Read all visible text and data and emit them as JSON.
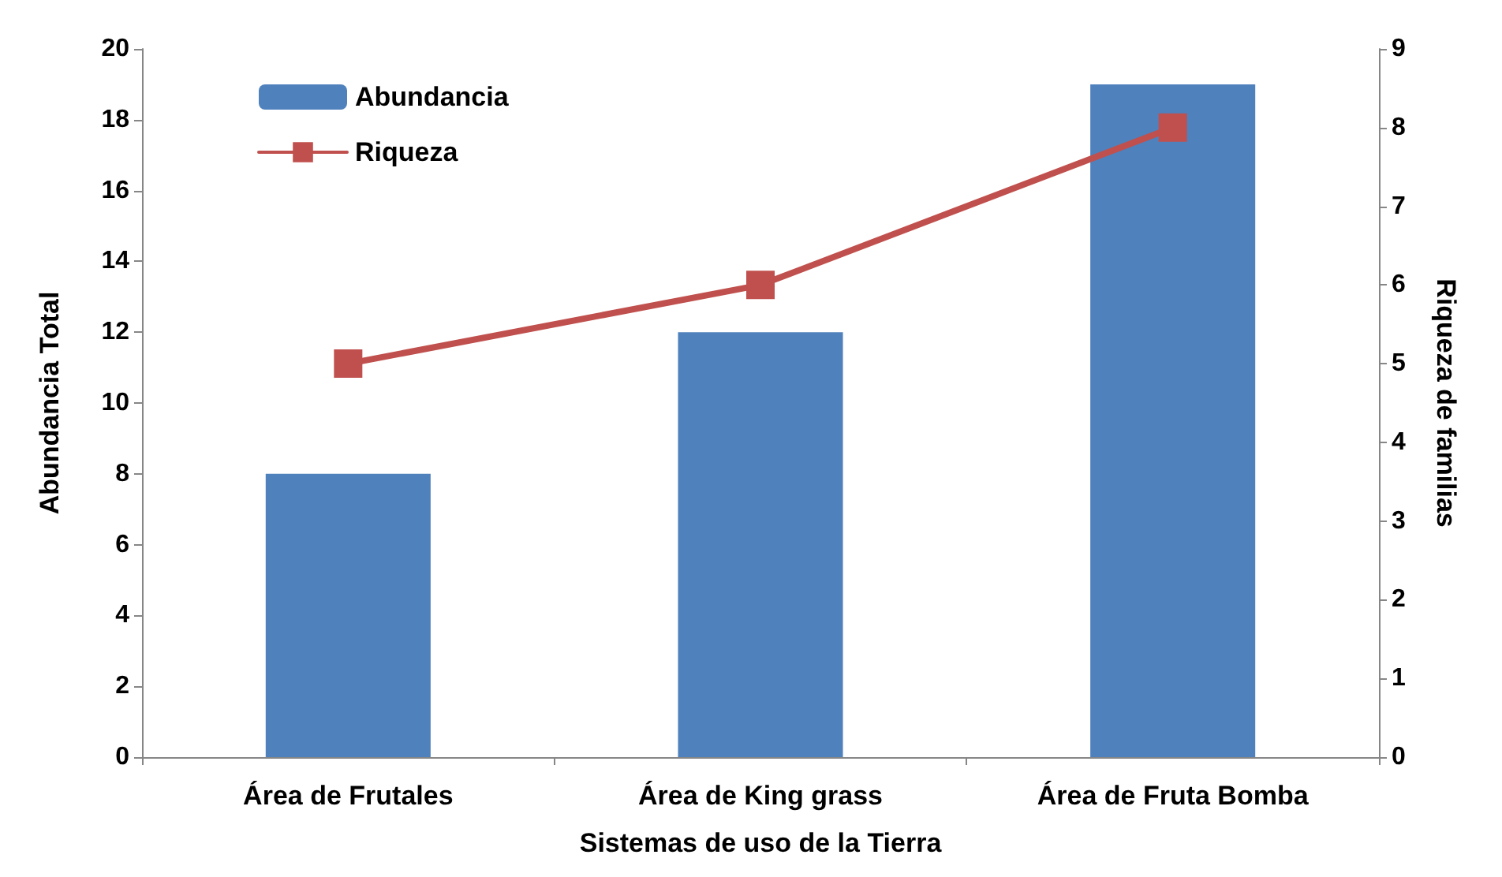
{
  "chart_data": {
    "type": "bar",
    "xlabel": "Sistemas de uso de la Tierra",
    "ylabel": "Abundancia Total",
    "y2label": "Riqueza de familias",
    "categories": [
      "Área de Frutales",
      "Área de King grass",
      "Área de Fruta Bomba"
    ],
    "series": [
      {
        "name": "Abundancia",
        "color": "#4f81bd",
        "values": [
          8,
          12,
          19
        ]
      },
      {
        "name": "Riqueza",
        "type": "line",
        "axis": "y2",
        "color": "#c0504d",
        "values": [
          5,
          6,
          8
        ]
      }
    ],
    "ylim": [
      0,
      20
    ],
    "yticks": [
      0,
      2,
      4,
      6,
      8,
      10,
      12,
      14,
      16,
      18,
      20
    ],
    "y2lim": [
      0,
      9
    ],
    "y2ticks": [
      0,
      1,
      2,
      3,
      4,
      5,
      6,
      7,
      8,
      9
    ],
    "legend": "top left",
    "marker": "square"
  }
}
